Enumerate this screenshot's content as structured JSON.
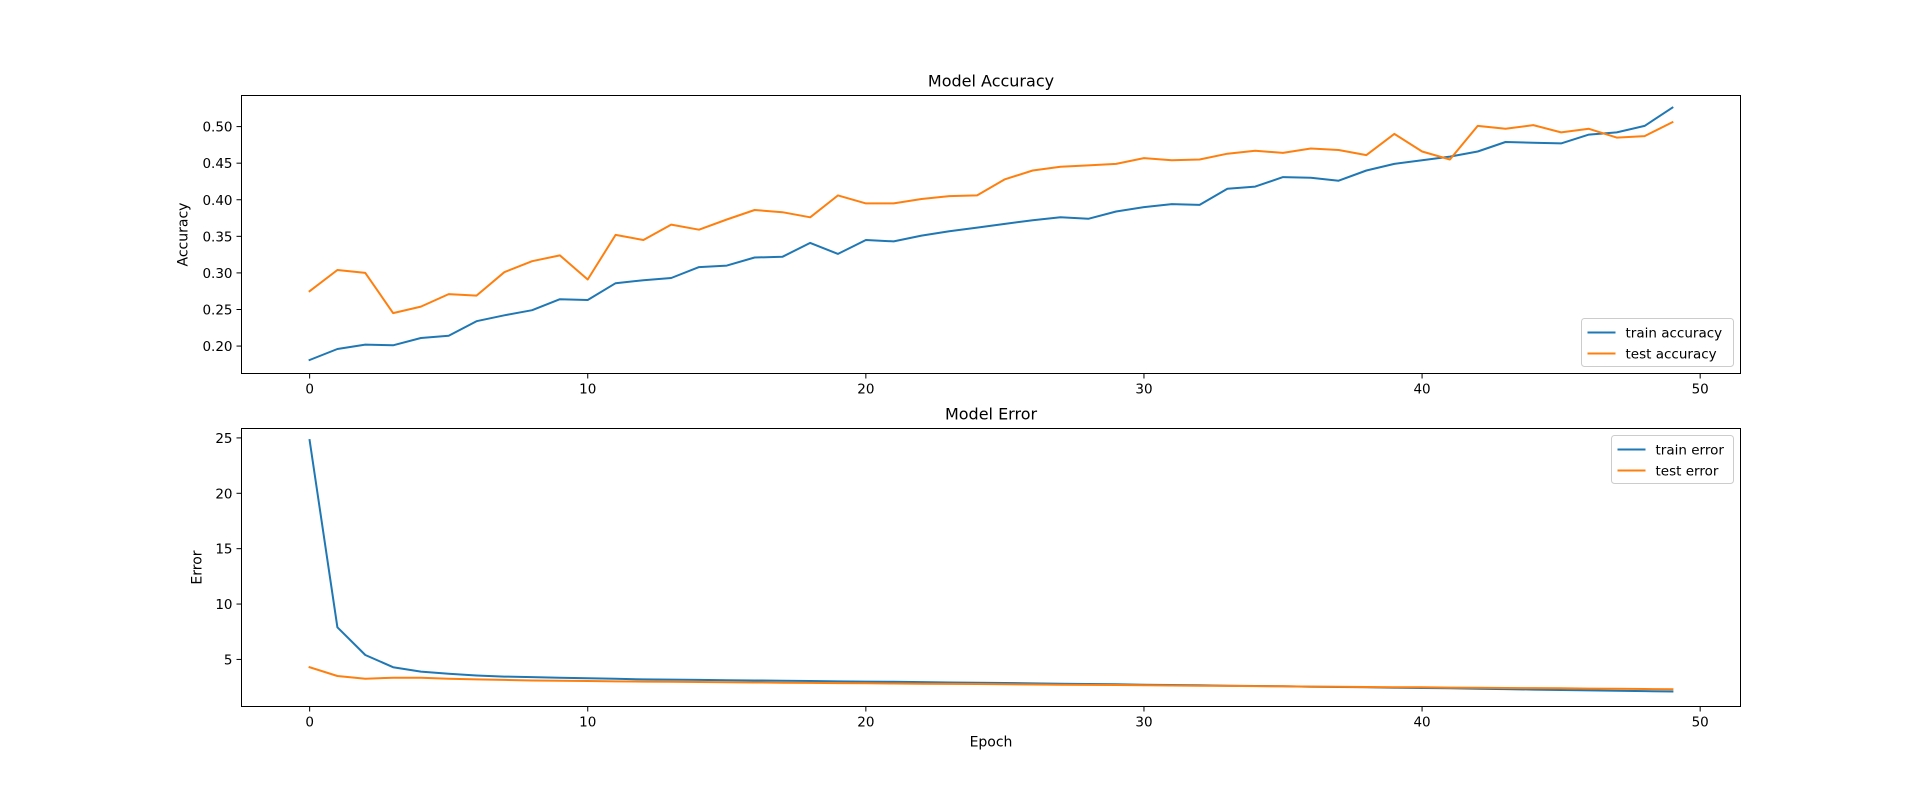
{
  "chart_data": [
    {
      "type": "line",
      "title": "Model Accuracy",
      "xlabel": "",
      "ylabel": "Accuracy",
      "xlim": [
        -2.45,
        51.45
      ],
      "ylim": [
        0.1625,
        0.5425
      ],
      "xticks": [
        0,
        10,
        20,
        30,
        40,
        50
      ],
      "yticks": [
        0.2,
        0.25,
        0.3,
        0.35,
        0.4,
        0.45,
        0.5
      ],
      "ytick_labels": [
        "0.20",
        "0.25",
        "0.30",
        "0.35",
        "0.40",
        "0.45",
        "0.50"
      ],
      "legend_position": "lower right",
      "grid": false,
      "x": [
        0,
        1,
        2,
        3,
        4,
        5,
        6,
        7,
        8,
        9,
        10,
        11,
        12,
        13,
        14,
        15,
        16,
        17,
        18,
        19,
        20,
        21,
        22,
        23,
        24,
        25,
        26,
        27,
        28,
        29,
        30,
        31,
        32,
        33,
        34,
        35,
        36,
        37,
        38,
        39,
        40,
        41,
        42,
        43,
        44,
        45,
        46,
        47,
        48,
        49
      ],
      "series": [
        {
          "name": "train accuracy",
          "color": "#1f77b4",
          "values": [
            0.181,
            0.196,
            0.202,
            0.201,
            0.211,
            0.214,
            0.234,
            0.242,
            0.249,
            0.264,
            0.263,
            0.286,
            0.29,
            0.293,
            0.308,
            0.31,
            0.321,
            0.322,
            0.341,
            0.326,
            0.345,
            0.343,
            0.351,
            0.357,
            0.362,
            0.367,
            0.372,
            0.376,
            0.374,
            0.384,
            0.39,
            0.394,
            0.393,
            0.415,
            0.418,
            0.431,
            0.43,
            0.426,
            0.44,
            0.449,
            0.454,
            0.459,
            0.466,
            0.479,
            0.478,
            0.477,
            0.489,
            0.492,
            0.501,
            0.526
          ]
        },
        {
          "name": "test accuracy",
          "color": "#ff7f0e",
          "values": [
            0.275,
            0.304,
            0.3,
            0.245,
            0.254,
            0.271,
            0.269,
            0.301,
            0.316,
            0.324,
            0.291,
            0.352,
            0.345,
            0.366,
            0.359,
            0.373,
            0.386,
            0.383,
            0.376,
            0.406,
            0.395,
            0.395,
            0.401,
            0.405,
            0.406,
            0.428,
            0.44,
            0.445,
            0.447,
            0.449,
            0.457,
            0.454,
            0.455,
            0.463,
            0.467,
            0.464,
            0.47,
            0.468,
            0.461,
            0.49,
            0.466,
            0.455,
            0.501,
            0.497,
            0.502,
            0.492,
            0.497,
            0.485,
            0.487,
            0.506
          ]
        }
      ]
    },
    {
      "type": "line",
      "title": "Model Error",
      "xlabel": "Epoch",
      "ylabel": "Error",
      "xlim": [
        -2.45,
        51.45
      ],
      "ylim": [
        0.75,
        25.85
      ],
      "xticks": [
        0,
        10,
        20,
        30,
        40,
        50
      ],
      "yticks": [
        5,
        10,
        15,
        20,
        25
      ],
      "ytick_labels": [
        "5",
        "10",
        "15",
        "20",
        "25"
      ],
      "legend_position": "upper right",
      "grid": false,
      "x": [
        0,
        1,
        2,
        3,
        4,
        5,
        6,
        7,
        8,
        9,
        10,
        11,
        12,
        13,
        14,
        15,
        16,
        17,
        18,
        19,
        20,
        21,
        22,
        23,
        24,
        25,
        26,
        27,
        28,
        29,
        30,
        31,
        32,
        33,
        34,
        35,
        36,
        37,
        38,
        39,
        40,
        41,
        42,
        43,
        44,
        45,
        46,
        47,
        48,
        49
      ],
      "series": [
        {
          "name": "train error",
          "color": "#1f77b4",
          "values": [
            24.8,
            7.9,
            5.4,
            4.3,
            3.9,
            3.7,
            3.55,
            3.45,
            3.4,
            3.35,
            3.3,
            3.25,
            3.2,
            3.18,
            3.15,
            3.12,
            3.1,
            3.08,
            3.05,
            3.02,
            3.0,
            2.98,
            2.95,
            2.92,
            2.9,
            2.87,
            2.84,
            2.81,
            2.78,
            2.75,
            2.72,
            2.69,
            2.66,
            2.63,
            2.6,
            2.57,
            2.54,
            2.51,
            2.48,
            2.45,
            2.42,
            2.39,
            2.35,
            2.32,
            2.28,
            2.24,
            2.2,
            2.17,
            2.14,
            2.1
          ]
        },
        {
          "name": "test error",
          "color": "#ff7f0e",
          "values": [
            4.3,
            3.5,
            3.25,
            3.35,
            3.35,
            3.25,
            3.2,
            3.15,
            3.1,
            3.08,
            3.05,
            3.02,
            3.0,
            2.98,
            2.96,
            2.94,
            2.92,
            2.9,
            2.88,
            2.86,
            2.85,
            2.83,
            2.81,
            2.79,
            2.78,
            2.76,
            2.74,
            2.72,
            2.7,
            2.69,
            2.67,
            2.65,
            2.63,
            2.61,
            2.59,
            2.57,
            2.55,
            2.53,
            2.51,
            2.49,
            2.48,
            2.46,
            2.44,
            2.42,
            2.41,
            2.39,
            2.37,
            2.35,
            2.33,
            2.3
          ]
        }
      ]
    }
  ]
}
